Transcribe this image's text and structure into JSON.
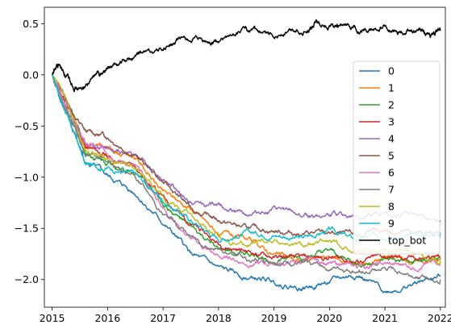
{
  "chart_data": {
    "type": "line",
    "title": "",
    "xlabel": "",
    "ylabel": "",
    "xlim": [
      2014.86,
      2022.09
    ],
    "ylim": [
      -2.27,
      0.66
    ],
    "x_ticks": [
      2015,
      2016,
      2017,
      2018,
      2019,
      2020,
      2021,
      2022
    ],
    "x_tick_labels": [
      "2015",
      "2016",
      "2017",
      "2018",
      "2019",
      "2020",
      "2021",
      "2022"
    ],
    "y_ticks": [
      -2.0,
      -1.5,
      -1.0,
      -0.5,
      0.0,
      0.5
    ],
    "y_tick_labels": [
      "−2.0",
      "−1.5",
      "−1.0",
      "−0.5",
      "0.0",
      "0.5"
    ],
    "grid": false,
    "legend_position": "right",
    "series": [
      {
        "name": "0",
        "color": "#1f77b4",
        "x": [
          2015.0,
          2015.3,
          2015.6,
          2016.0,
          2016.5,
          2017.0,
          2017.5,
          2018.0,
          2018.5,
          2019.0,
          2019.5,
          2020.0,
          2020.5,
          2021.0,
          2021.5,
          2022.0
        ],
        "y": [
          0.0,
          -0.45,
          -0.85,
          -1.0,
          -1.15,
          -1.45,
          -1.75,
          -1.9,
          -1.98,
          -2.02,
          -2.08,
          -2.02,
          -1.95,
          -2.12,
          -2.05,
          -1.97
        ]
      },
      {
        "name": "1",
        "color": "#ff7f0e",
        "x": [
          2015.0,
          2015.3,
          2015.6,
          2016.0,
          2016.5,
          2017.0,
          2017.5,
          2018.0,
          2018.5,
          2019.0,
          2019.5,
          2020.0,
          2020.5,
          2021.0,
          2021.5,
          2022.0
        ],
        "y": [
          0.0,
          -0.3,
          -0.68,
          -0.72,
          -0.8,
          -1.15,
          -1.3,
          -1.55,
          -1.62,
          -1.75,
          -1.82,
          -1.78,
          -1.85,
          -1.78,
          -1.82,
          -1.8
        ]
      },
      {
        "name": "2",
        "color": "#2ca02c",
        "x": [
          2015.0,
          2015.3,
          2015.6,
          2016.0,
          2016.5,
          2017.0,
          2017.5,
          2018.0,
          2018.5,
          2019.0,
          2019.5,
          2020.0,
          2020.5,
          2021.0,
          2021.5,
          2022.0
        ],
        "y": [
          0.0,
          -0.4,
          -0.75,
          -0.85,
          -0.95,
          -1.25,
          -1.5,
          -1.72,
          -1.75,
          -1.8,
          -1.78,
          -1.75,
          -1.85,
          -1.82,
          -1.85,
          -1.8
        ]
      },
      {
        "name": "3",
        "color": "#d62728",
        "x": [
          2015.0,
          2015.3,
          2015.6,
          2016.0,
          2016.5,
          2017.0,
          2017.5,
          2018.0,
          2018.5,
          2019.0,
          2019.5,
          2020.0,
          2020.5,
          2021.0,
          2021.5,
          2022.0
        ],
        "y": [
          0.0,
          -0.35,
          -0.7,
          -0.8,
          -0.9,
          -1.2,
          -1.45,
          -1.65,
          -1.72,
          -1.78,
          -1.8,
          -1.78,
          -1.82,
          -1.78,
          -1.8,
          -1.78
        ]
      },
      {
        "name": "4",
        "color": "#9467bd",
        "x": [
          2015.0,
          2015.3,
          2015.6,
          2016.0,
          2016.5,
          2017.0,
          2017.5,
          2018.0,
          2018.5,
          2019.0,
          2019.5,
          2020.0,
          2020.5,
          2021.0,
          2021.5,
          2022.0
        ],
        "y": [
          0.0,
          -0.32,
          -0.66,
          -0.72,
          -0.78,
          -1.0,
          -1.25,
          -1.28,
          -1.35,
          -1.32,
          -1.38,
          -1.36,
          -1.4,
          -1.38,
          -1.36,
          -1.42
        ]
      },
      {
        "name": "5",
        "color": "#8c564b",
        "x": [
          2015.0,
          2015.3,
          2015.6,
          2016.0,
          2016.5,
          2017.0,
          2017.5,
          2018.0,
          2018.5,
          2019.0,
          2019.5,
          2020.0,
          2020.5,
          2021.0,
          2021.5,
          2022.0
        ],
        "y": [
          0.0,
          -0.3,
          -0.56,
          -0.6,
          -0.78,
          -1.05,
          -1.3,
          -1.42,
          -1.5,
          -1.52,
          -1.55,
          -1.55,
          -1.58,
          -1.52,
          -1.55,
          -1.55
        ]
      },
      {
        "name": "6",
        "color": "#e377c2",
        "x": [
          2015.0,
          2015.3,
          2015.6,
          2016.0,
          2016.5,
          2017.0,
          2017.5,
          2018.0,
          2018.5,
          2019.0,
          2019.5,
          2020.0,
          2020.5,
          2021.0,
          2021.5,
          2022.0
        ],
        "y": [
          0.0,
          -0.38,
          -0.68,
          -0.75,
          -0.9,
          -1.3,
          -1.6,
          -1.78,
          -1.83,
          -1.85,
          -1.82,
          -1.85,
          -1.88,
          -1.85,
          -1.87,
          -1.82
        ]
      },
      {
        "name": "7",
        "color": "#7f7f7f",
        "x": [
          2015.0,
          2015.3,
          2015.6,
          2016.0,
          2016.5,
          2017.0,
          2017.5,
          2018.0,
          2018.5,
          2019.0,
          2019.5,
          2020.0,
          2020.5,
          2021.0,
          2021.5,
          2022.0
        ],
        "y": [
          0.0,
          -0.4,
          -0.78,
          -0.85,
          -1.0,
          -1.35,
          -1.58,
          -1.7,
          -1.8,
          -1.82,
          -1.85,
          -1.88,
          -1.92,
          -1.9,
          -1.95,
          -2.0
        ]
      },
      {
        "name": "8",
        "color": "#bcbd22",
        "x": [
          2015.0,
          2015.3,
          2015.6,
          2016.0,
          2016.5,
          2017.0,
          2017.5,
          2018.0,
          2018.5,
          2019.0,
          2019.5,
          2020.0,
          2020.5,
          2021.0,
          2021.5,
          2022.0
        ],
        "y": [
          0.0,
          -0.3,
          -0.72,
          -0.82,
          -0.9,
          -1.2,
          -1.4,
          -1.6,
          -1.65,
          -1.62,
          -1.68,
          -1.65,
          -1.72,
          -1.7,
          -1.75,
          -1.82
        ]
      },
      {
        "name": "9",
        "color": "#17becf",
        "x": [
          2015.0,
          2015.3,
          2015.6,
          2016.0,
          2016.5,
          2017.0,
          2017.5,
          2018.0,
          2018.5,
          2019.0,
          2019.5,
          2020.0,
          2020.5,
          2021.0,
          2021.5,
          2022.0
        ],
        "y": [
          0.0,
          -0.42,
          -0.88,
          -0.9,
          -0.98,
          -1.22,
          -1.42,
          -1.6,
          -1.55,
          -1.55,
          -1.6,
          -1.52,
          -1.62,
          -1.55,
          -1.58,
          -1.55
        ]
      },
      {
        "name": "top_bot",
        "color": "#000000",
        "x": [
          2015.0,
          2015.12,
          2015.3,
          2015.5,
          2015.8,
          2016.0,
          2016.3,
          2016.6,
          2017.0,
          2017.4,
          2017.8,
          2018.0,
          2018.5,
          2018.8,
          2019.2,
          2019.6,
          2019.8,
          2020.1,
          2020.4,
          2020.7,
          2021.0,
          2021.3,
          2021.6,
          2021.8,
          2022.0
        ],
        "y": [
          0.0,
          0.1,
          -0.05,
          -0.15,
          0.0,
          0.05,
          0.12,
          0.2,
          0.25,
          0.35,
          0.3,
          0.32,
          0.45,
          0.35,
          0.42,
          0.45,
          0.52,
          0.48,
          0.45,
          0.42,
          0.45,
          0.4,
          0.45,
          0.38,
          0.43
        ]
      }
    ]
  }
}
